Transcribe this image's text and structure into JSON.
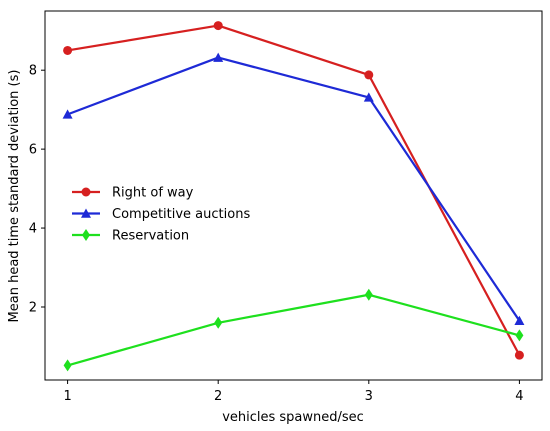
{
  "chart_data": {
    "type": "line",
    "title": "",
    "xlabel": "vehicles spawned/sec",
    "ylabel": "Mean head time standard deviation (s)",
    "x": [
      1,
      2,
      3,
      4
    ],
    "xlim": [
      0.85,
      4.15
    ],
    "ylim": [
      0.15,
      9.5
    ],
    "xticks": [
      "1",
      "2",
      "3",
      "4"
    ],
    "yticks": [
      "2",
      "4",
      "6",
      "8"
    ],
    "grid": false,
    "legend_position": "center-left",
    "series": [
      {
        "name": "Right of way",
        "color": "#d62020",
        "marker": "circle",
        "values": [
          8.5,
          9.13,
          7.88,
          0.78
        ]
      },
      {
        "name": "Competitive auctions",
        "color": "#1e2ad6",
        "marker": "triangle",
        "values": [
          6.88,
          8.32,
          7.31,
          1.65
        ]
      },
      {
        "name": "Reservation",
        "color": "#1ee01e",
        "marker": "diamond",
        "values": [
          0.52,
          1.6,
          2.31,
          1.28
        ]
      }
    ]
  }
}
